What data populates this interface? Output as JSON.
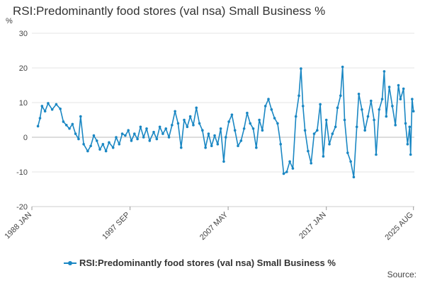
{
  "chart_data": {
    "type": "line",
    "title": "RSI:Predominantly food stores (val nsa) Small Business %",
    "ylabel": "%",
    "xlabel": "",
    "ylim": [
      -20,
      30
    ],
    "yticks": [
      30,
      20,
      10,
      0,
      -10,
      -20
    ],
    "xlim": [
      1988.0,
      2025.67
    ],
    "xticks": [
      {
        "label": "1988 JAN",
        "x": 1988.0
      },
      {
        "label": "1997 SEP",
        "x": 1997.67
      },
      {
        "label": "2007 MAY",
        "x": 2007.33
      },
      {
        "label": "2017 JAN",
        "x": 2017.0
      },
      {
        "label": "2025 AUG",
        "x": 2025.58
      }
    ],
    "grid": true,
    "legend": "bottom",
    "series": [
      {
        "name": "RSI:Predominantly food stores (val nsa) Small Business %",
        "color": "#1a87c3",
        "points": [
          [
            1988.6,
            3.2
          ],
          [
            1988.8,
            5.5
          ],
          [
            1989.0,
            9.0
          ],
          [
            1989.3,
            7.5
          ],
          [
            1989.6,
            9.8
          ],
          [
            1990.0,
            8.0
          ],
          [
            1990.4,
            9.5
          ],
          [
            1990.8,
            8.2
          ],
          [
            1991.1,
            4.5
          ],
          [
            1991.4,
            3.5
          ],
          [
            1991.7,
            2.5
          ],
          [
            1992.0,
            3.8
          ],
          [
            1992.3,
            1.0
          ],
          [
            1992.6,
            -0.5
          ],
          [
            1992.8,
            6.0
          ],
          [
            1993.1,
            -2.0
          ],
          [
            1993.5,
            -4.0
          ],
          [
            1993.8,
            -2.5
          ],
          [
            1994.1,
            0.5
          ],
          [
            1994.4,
            -1.0
          ],
          [
            1994.7,
            -3.5
          ],
          [
            1995.0,
            -2.0
          ],
          [
            1995.3,
            -4.0
          ],
          [
            1995.6,
            -1.5
          ],
          [
            1996.0,
            -3.0
          ],
          [
            1996.3,
            0.0
          ],
          [
            1996.6,
            -2.0
          ],
          [
            1996.9,
            1.0
          ],
          [
            1997.2,
            0.5
          ],
          [
            1997.5,
            2.0
          ],
          [
            1997.8,
            -1.0
          ],
          [
            1998.1,
            1.0
          ],
          [
            1998.4,
            -0.5
          ],
          [
            1998.7,
            3.0
          ],
          [
            1999.0,
            0.0
          ],
          [
            1999.3,
            2.5
          ],
          [
            1999.6,
            -1.0
          ],
          [
            2000.0,
            1.5
          ],
          [
            2000.3,
            -0.5
          ],
          [
            2000.6,
            3.0
          ],
          [
            2000.9,
            1.0
          ],
          [
            2001.2,
            2.5
          ],
          [
            2001.5,
            0.0
          ],
          [
            2001.8,
            3.5
          ],
          [
            2002.1,
            7.5
          ],
          [
            2002.4,
            4.0
          ],
          [
            2002.7,
            -3.0
          ],
          [
            2003.0,
            5.0
          ],
          [
            2003.3,
            3.0
          ],
          [
            2003.6,
            6.0
          ],
          [
            2003.9,
            3.5
          ],
          [
            2004.2,
            8.5
          ],
          [
            2004.5,
            4.0
          ],
          [
            2004.8,
            2.0
          ],
          [
            2005.1,
            -3.0
          ],
          [
            2005.4,
            1.0
          ],
          [
            2005.7,
            -2.5
          ],
          [
            2006.0,
            0.5
          ],
          [
            2006.3,
            -2.0
          ],
          [
            2006.6,
            2.5
          ],
          [
            2006.9,
            -7.0
          ],
          [
            2007.1,
            0.0
          ],
          [
            2007.4,
            4.5
          ],
          [
            2007.7,
            6.5
          ],
          [
            2008.0,
            2.0
          ],
          [
            2008.3,
            -2.5
          ],
          [
            2008.6,
            -1.0
          ],
          [
            2008.9,
            2.5
          ],
          [
            2009.2,
            7.0
          ],
          [
            2009.5,
            4.0
          ],
          [
            2009.8,
            2.5
          ],
          [
            2010.1,
            -3.0
          ],
          [
            2010.4,
            5.0
          ],
          [
            2010.7,
            2.0
          ],
          [
            2011.0,
            9.0
          ],
          [
            2011.3,
            11.0
          ],
          [
            2011.6,
            8.0
          ],
          [
            2011.9,
            5.5
          ],
          [
            2012.2,
            4.0
          ],
          [
            2012.5,
            -2.0
          ],
          [
            2012.8,
            -10.5
          ],
          [
            2013.1,
            -10.0
          ],
          [
            2013.4,
            -7.0
          ],
          [
            2013.7,
            -9.0
          ],
          [
            2014.0,
            6.0
          ],
          [
            2014.3,
            12.0
          ],
          [
            2014.5,
            19.8
          ],
          [
            2014.7,
            9.0
          ],
          [
            2014.9,
            2.0
          ],
          [
            2015.2,
            -4.0
          ],
          [
            2015.5,
            -7.5
          ],
          [
            2015.8,
            1.0
          ],
          [
            2016.1,
            2.0
          ],
          [
            2016.4,
            9.5
          ],
          [
            2016.7,
            -5.5
          ],
          [
            2017.0,
            5.0
          ],
          [
            2017.3,
            -2.0
          ],
          [
            2017.6,
            1.0
          ],
          [
            2017.9,
            3.0
          ],
          [
            2018.1,
            8.5
          ],
          [
            2018.4,
            12.0
          ],
          [
            2018.6,
            20.3
          ],
          [
            2018.8,
            5.0
          ],
          [
            2019.1,
            -4.5
          ],
          [
            2019.4,
            -7.0
          ],
          [
            2019.7,
            -11.5
          ],
          [
            2020.0,
            3.0
          ],
          [
            2020.2,
            12.5
          ],
          [
            2020.5,
            8.0
          ],
          [
            2020.8,
            2.0
          ],
          [
            2021.1,
            6.0
          ],
          [
            2021.4,
            10.5
          ],
          [
            2021.7,
            5.0
          ],
          [
            2021.9,
            -5.0
          ],
          [
            2022.2,
            8.0
          ],
          [
            2022.5,
            11.0
          ],
          [
            2022.7,
            19.0
          ],
          [
            2022.9,
            6.0
          ],
          [
            2023.2,
            14.5
          ],
          [
            2023.5,
            9.0
          ],
          [
            2023.8,
            3.5
          ],
          [
            2024.1,
            15.0
          ],
          [
            2024.3,
            11.0
          ],
          [
            2024.6,
            14.0
          ],
          [
            2024.8,
            4.0
          ],
          [
            2025.0,
            -2.0
          ],
          [
            2025.2,
            3.0
          ],
          [
            2025.3,
            -5.0
          ],
          [
            2025.45,
            11.0
          ],
          [
            2025.58,
            7.5
          ]
        ]
      }
    ],
    "source": "Source:"
  }
}
